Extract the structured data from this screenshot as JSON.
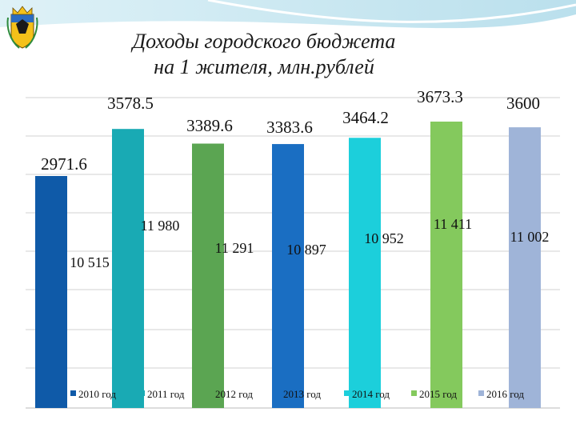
{
  "header": {
    "title_line1": "Доходы городского бюджета",
    "title_line2": "на 1 жителя, млн.рублей"
  },
  "chart_data": {
    "type": "bar",
    "categories": [
      "2010 год",
      "2011 год",
      "2012 год",
      "2013 год",
      "2014 год",
      "2015 год",
      "2016 год"
    ],
    "values": [
      2971.6,
      3578.5,
      3389.6,
      3383.6,
      3464.2,
      3673.3,
      3600
    ],
    "value_labels": [
      "2971.6",
      "3578.5",
      "3389.6",
      "3383.6",
      "3464.2",
      "3673.3",
      "3600"
    ],
    "secondary_labels": [
      "10 515",
      "11 980",
      "11 291",
      "10 897",
      "10 952",
      "11 411",
      "11 002"
    ],
    "colors": [
      "#0f5aa8",
      "#19aab4",
      "#5ba552",
      "#1a6ec2",
      "#1ccfdb",
      "#84c95d",
      "#9fb4d8"
    ],
    "legend_position": "bottom",
    "grid": true
  }
}
